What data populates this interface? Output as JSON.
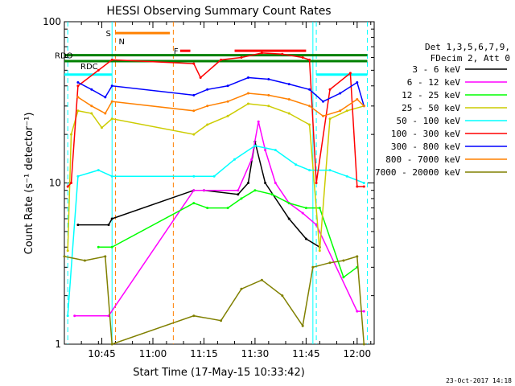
{
  "chart_data": {
    "type": "line",
    "title": "HESSI Observing Summary Count Rates",
    "xlabel": "Start Time (17-May-15 10:33:42)",
    "ylabel": "Count Rate (s⁻¹ detector⁻¹)",
    "yscale": "log",
    "ylim": [
      1,
      100
    ],
    "xlim": [
      "10:34",
      "12:05"
    ],
    "x_ticks": [
      "10:45",
      "11:00",
      "11:15",
      "11:30",
      "11:45",
      "12:00"
    ],
    "y_ticks": [
      "1",
      "10",
      "100"
    ],
    "grid": false,
    "legend_position": "right",
    "legend_header": [
      "Det 1,3,5,6,7,9,",
      "FDecim 2, Att 0"
    ],
    "series": [
      {
        "name": "3 - 6 keV",
        "color": "#000000",
        "x": [
          "10:38",
          "10:47",
          "10:48",
          "11:12",
          "11:15",
          "11:25",
          "11:28",
          "11:30",
          "11:33",
          "11:40",
          "11:45",
          "11:49"
        ],
        "values": [
          5.5,
          5.5,
          6.0,
          9.0,
          9.0,
          8.5,
          10.0,
          18.0,
          10.0,
          6.0,
          4.5,
          4.0
        ]
      },
      {
        "name": "6 - 12 keV",
        "color": "#ff00ff",
        "x": [
          "10:37",
          "10:47",
          "11:12",
          "11:15",
          "11:25",
          "11:29",
          "11:31",
          "11:33",
          "11:36",
          "11:40",
          "11:44",
          "11:48",
          "12:00",
          "12:02"
        ],
        "values": [
          1.5,
          1.5,
          9.0,
          9.0,
          9.0,
          14.0,
          24.0,
          16.0,
          10.0,
          7.5,
          6.5,
          5.5,
          1.6,
          1.6
        ]
      },
      {
        "name": "12 - 25 keV",
        "color": "#00ff00",
        "x": [
          "10:44",
          "10:48",
          "11:12",
          "11:16",
          "11:22",
          "11:26",
          "11:30",
          "11:35",
          "11:40",
          "11:45",
          "11:49",
          "11:56",
          "12:00"
        ],
        "values": [
          4.0,
          4.0,
          7.5,
          7.0,
          7.0,
          8.0,
          9.0,
          8.5,
          7.5,
          7.0,
          7.0,
          2.6,
          3.0
        ]
      },
      {
        "name": "25 - 50 keV",
        "color": "#cccc00",
        "x": [
          "10:35",
          "10:36",
          "10:38",
          "10:42",
          "10:45",
          "10:48",
          "11:12",
          "11:16",
          "11:22",
          "11:28",
          "11:34",
          "11:40",
          "11:46",
          "11:49",
          "11:52",
          "11:57",
          "12:02"
        ],
        "values": [
          3.8,
          20.0,
          28.0,
          27.0,
          22.0,
          25.0,
          20.0,
          23.0,
          26.0,
          31.0,
          30.0,
          27.0,
          23.0,
          3.8,
          25.0,
          28.0,
          30.0
        ]
      },
      {
        "name": "50 - 100 keV",
        "color": "#00ffff",
        "x": [
          "10:35",
          "10:38",
          "10:44",
          "10:48",
          "11:12",
          "11:18",
          "11:24",
          "11:30",
          "11:36",
          "11:42",
          "11:46",
          "11:52",
          "11:57",
          "12:02"
        ],
        "values": [
          1.5,
          11.0,
          12.0,
          11.0,
          11.0,
          11.0,
          14.0,
          17.0,
          16.0,
          13.0,
          12.0,
          12.0,
          11.0,
          10.0
        ]
      },
      {
        "name": "100 - 300 keV",
        "color": "#ff0000",
        "x": [
          "10:35",
          "10:36",
          "10:38",
          "10:44",
          "10:48",
          "11:12",
          "11:14",
          "11:20",
          "11:26",
          "11:32",
          "11:38",
          "11:44",
          "11:46",
          "11:48",
          "11:52",
          "11:58",
          "12:00",
          "12:02"
        ],
        "values": [
          9.5,
          10.0,
          40.0,
          50.0,
          58.0,
          55.0,
          45.0,
          58.0,
          60.0,
          64.0,
          63.0,
          60.0,
          58.0,
          10.0,
          38.0,
          48.0,
          9.5,
          9.5
        ]
      },
      {
        "name": "300 - 800 keV",
        "color": "#0000ff",
        "x": [
          "10:38",
          "10:42",
          "10:46",
          "10:48",
          "11:12",
          "11:16",
          "11:22",
          "11:28",
          "11:34",
          "11:40",
          "11:46",
          "11:50",
          "11:55",
          "12:00",
          "12:02"
        ],
        "values": [
          42.0,
          38.0,
          34.0,
          40.0,
          35.0,
          38.0,
          40.0,
          45.0,
          44.0,
          41.0,
          38.0,
          32.0,
          36.0,
          42.0,
          30.0
        ]
      },
      {
        "name": "800 - 7000 keV",
        "color": "#ff8000",
        "x": [
          "10:38",
          "10:42",
          "10:46",
          "10:48",
          "11:12",
          "11:16",
          "11:22",
          "11:28",
          "11:34",
          "11:40",
          "11:46",
          "11:50",
          "11:55",
          "12:00",
          "12:02"
        ],
        "values": [
          34.0,
          30.0,
          27.0,
          32.0,
          28.0,
          30.0,
          32.0,
          36.0,
          35.0,
          33.0,
          30.0,
          26.0,
          28.0,
          33.0,
          30.0
        ]
      },
      {
        "name": "7000 - 20000 keV",
        "color": "#808000",
        "x": [
          "10:34",
          "10:40",
          "10:46",
          "10:48",
          "11:12",
          "11:20",
          "11:26",
          "11:32",
          "11:38",
          "11:44",
          "11:47",
          "11:52",
          "11:56",
          "12:00",
          "12:02"
        ],
        "values": [
          3.5,
          3.3,
          3.5,
          1.0,
          1.5,
          1.4,
          2.2,
          2.5,
          2.0,
          1.3,
          3.0,
          3.2,
          3.3,
          3.5,
          1.0
        ]
      }
    ],
    "flags": {
      "saa_level": 85,
      "saa_label": "S",
      "night_label": "N",
      "flare_label": "F",
      "rdo_label": "RDO",
      "rdc_label": "RDC",
      "night_segments": [
        [
          "10:34",
          "10:48"
        ],
        [
          "11:48",
          "12:03"
        ]
      ],
      "saa_segments": [
        [
          "10:49",
          "11:05"
        ]
      ],
      "rdo_level": 62,
      "rdc_level": 57,
      "rdo_segments": [
        [
          "10:34",
          "12:03"
        ]
      ],
      "flare_segments": [
        [
          "11:08",
          "11:11"
        ],
        [
          "11:24",
          "11:45"
        ]
      ]
    },
    "markers": {
      "cyan_dashed": [
        "10:35",
        "11:48",
        "12:03"
      ],
      "orange_dashed": [
        "10:49",
        "11:06"
      ],
      "cyan_solid": [
        "10:48",
        "11:47"
      ]
    }
  },
  "footer": {
    "timestamp": "23-Oct-2017 14:18"
  }
}
